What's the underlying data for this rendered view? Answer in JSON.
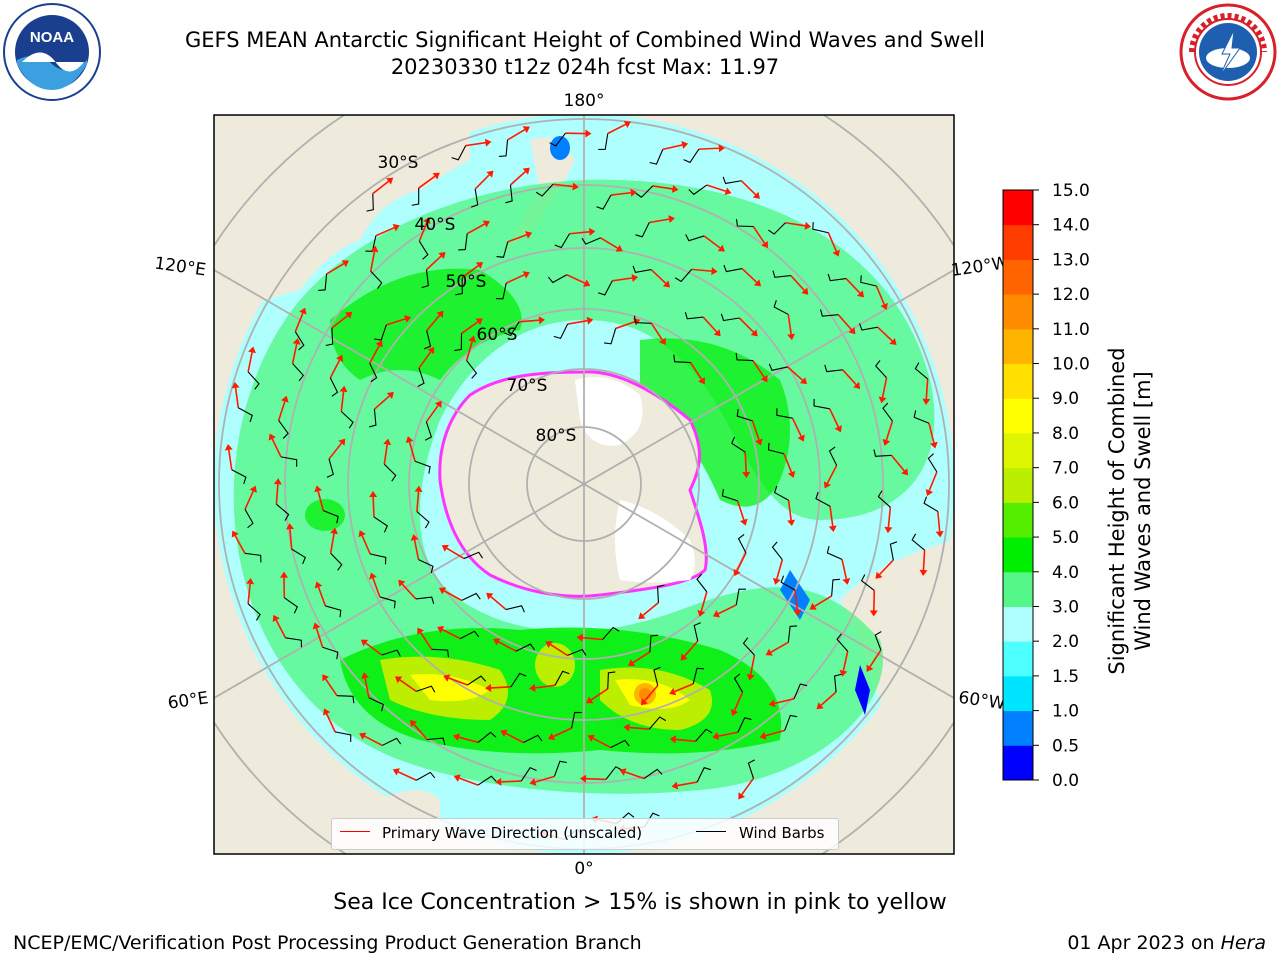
{
  "title": {
    "line1": "GEFS MEAN Antarctic Significant Height of Combined Wind Waves and Swell",
    "line2": "20230330 t12z 024h fcst   Max: 11.97"
  },
  "logos": {
    "left": {
      "text": "NOAA",
      "icon": "noaa-logo"
    },
    "right": {
      "icon": "nws-logo"
    }
  },
  "map": {
    "projection": "south-polar-stereographic",
    "longitude_labels": [
      "180°",
      "120°E",
      "120°W",
      "60°E",
      "60°W",
      "0°"
    ],
    "latitude_labels": [
      "30°S",
      "40°S",
      "50°S",
      "60°S",
      "70°S",
      "80°S"
    ],
    "colors": {
      "land": "#efebdc",
      "ocean_low": "#aefffe",
      "grid": "#b0b0b0",
      "arrow": "#ff1a00",
      "sea_ice": "#ff33ff"
    }
  },
  "legend": {
    "items": [
      {
        "label": "Primary Wave Direction (unscaled)",
        "color": "#ff0000"
      },
      {
        "label": "Wind Barbs",
        "color": "#000000"
      }
    ]
  },
  "colorbar": {
    "label_line1": "Significant Height of Combined",
    "label_line2": "Wind Waves and Swell [m]",
    "ticks": [
      "0.0",
      "0.5",
      "1.0",
      "1.5",
      "2.0",
      "3.0",
      "4.0",
      "5.0",
      "6.0",
      "7.0",
      "8.0",
      "9.0",
      "10.0",
      "11.0",
      "12.0",
      "13.0",
      "14.0",
      "15.0"
    ],
    "colors": [
      "#0000ff",
      "#0080ff",
      "#00e5ff",
      "#4dffff",
      "#aefffe",
      "#55f788",
      "#00ee00",
      "#55ee00",
      "#bbee00",
      "#ddf500",
      "#ffff00",
      "#ffe000",
      "#ffb400",
      "#ff8c00",
      "#ff6400",
      "#ff3c00",
      "#ff0000"
    ]
  },
  "footer": {
    "caption": "Sea Ice Concentration > 15% is shown in pink to yellow",
    "credit": "NCEP/EMC/Verification Post Processing Product Generation Branch",
    "date": "01 Apr 2023 on ",
    "host": "Hera"
  }
}
